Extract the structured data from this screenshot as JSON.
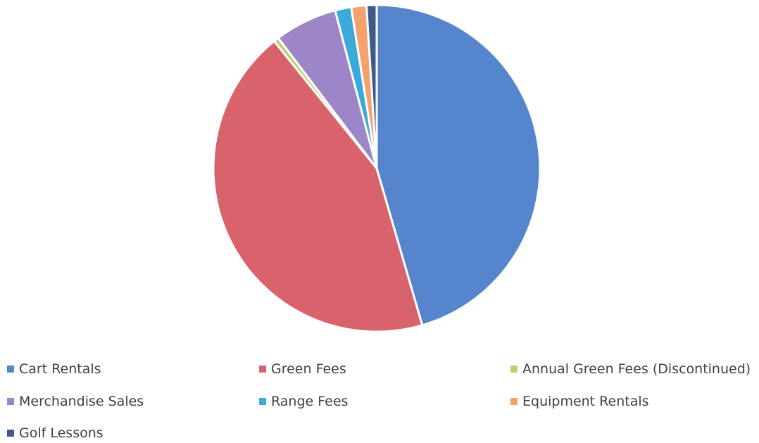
{
  "chart_data": {
    "type": "pie",
    "title": "",
    "legend_position": "bottom",
    "slices": [
      {
        "name": "Cart Rentals",
        "value": 45.5,
        "color": "#5585CC"
      },
      {
        "name": "Green Fees",
        "value": 43.7,
        "color": "#D9636C"
      },
      {
        "name": "Annual Green Fees (Discontinued)",
        "value": 0.5,
        "color": "#B9D36A"
      },
      {
        "name": "Merchandise Sales",
        "value": 6.2,
        "color": "#9D86C8"
      },
      {
        "name": "Range Fees",
        "value": 1.6,
        "color": "#3BA9D9"
      },
      {
        "name": "Equipment Rentals",
        "value": 1.5,
        "color": "#F4A26B"
      },
      {
        "name": "Golf Lessons",
        "value": 1.0,
        "color": "#3D5A8A"
      }
    ]
  }
}
